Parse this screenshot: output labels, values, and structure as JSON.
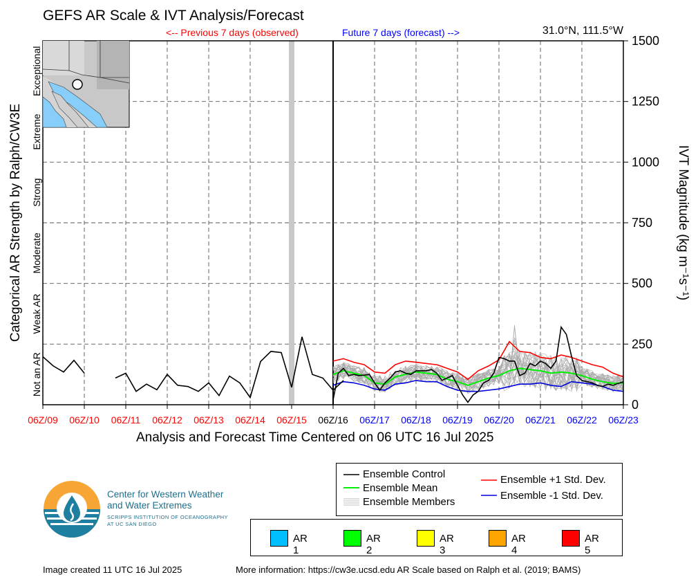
{
  "header": {
    "title": "GEFS AR Scale & IVT Analysis/Forecast",
    "coords": "31.0°N, 111.5°W",
    "previous_label": "<-- Previous 7 days (observed)",
    "future_label": "Future 7 days (forecast) -->"
  },
  "axes": {
    "x_title": "Analysis and Forecast Time Centered on 06 UTC 16 Jul 2025",
    "left_title": "Categorical AR Strength by Ralph/CW3E",
    "right_title": "IVT Magnitude (kg m⁻¹s⁻¹)",
    "y_ticks": [
      "0",
      "250",
      "500",
      "750",
      "1000",
      "1250",
      "1500"
    ],
    "categories": [
      "Not an AR",
      "Weak AR",
      "Moderate",
      "Strong",
      "Extreme",
      "Exceptional"
    ],
    "x_ticks": [
      "06Z/09",
      "06Z/10",
      "06Z/11",
      "06Z/12",
      "06Z/13",
      "06Z/14",
      "06Z/15",
      "06Z/16",
      "06Z/17",
      "06Z/18",
      "06Z/19",
      "06Z/20",
      "06Z/21",
      "06Z/22",
      "06Z/23"
    ],
    "x_tick_colors": [
      "#ff0000",
      "#ff0000",
      "#ff0000",
      "#ff0000",
      "#ff0000",
      "#ff0000",
      "#ff0000",
      "#000000",
      "#0000ff",
      "#0000ff",
      "#0000ff",
      "#0000ff",
      "#0000ff",
      "#0000ff",
      "#0000ff"
    ]
  },
  "legend": {
    "control": "Ensemble Control",
    "mean": "Ensemble Mean",
    "members": "Ensemble Members",
    "plus_std": "Ensemble +1 Std. Dev.",
    "minus_std": "Ensemble -1 Std. Dev."
  },
  "ar_scale": [
    {
      "label": "AR 1",
      "color": "#00bfff"
    },
    {
      "label": "AR 2",
      "color": "#00ff00"
    },
    {
      "label": "AR 3",
      "color": "#ffff00"
    },
    {
      "label": "AR 4",
      "color": "#ffa500"
    },
    {
      "label": "AR 5",
      "color": "#ff0000"
    }
  ],
  "logo": {
    "line1": "Center for Western Weather",
    "line2": "and Water Extremes",
    "sub1": "SCRIPPS INSTITUTION OF OCEANOGRAPHY",
    "sub2": "AT UC SAN DIEGO"
  },
  "footer": {
    "created": "Image created 11 UTC 16 Jul 2025",
    "more_info": "More information: https://cw3e.ucsd.edu AR Scale based on Ralph et al. (2019; BAMS)"
  },
  "chart_data": {
    "type": "line",
    "x_unit": "days relative to 06Z/09",
    "ylim": [
      0,
      1500
    ],
    "xlim": [
      0,
      14
    ],
    "grid": true,
    "analysis_time_x": 7,
    "highlight_x": 6,
    "series": [
      {
        "name": "Ensemble Control",
        "color": "#000000",
        "segments": [
          [
            [
              0,
              198
            ],
            [
              0.25,
              160
            ],
            [
              0.5,
              135
            ],
            [
              0.75,
              183
            ],
            [
              1,
              130
            ]
          ],
          [
            [
              1.75,
              110
            ],
            [
              2,
              130
            ],
            [
              2.25,
              55
            ],
            [
              2.5,
              85
            ],
            [
              2.75,
              62
            ],
            [
              3,
              125
            ],
            [
              3.25,
              80
            ],
            [
              3.5,
              75
            ],
            [
              3.75,
              55
            ],
            [
              4,
              90
            ],
            [
              4.25,
              38
            ],
            [
              4.5,
              118
            ],
            [
              4.75,
              90
            ],
            [
              5,
              30
            ],
            [
              5.25,
              178
            ],
            [
              5.5,
              220
            ],
            [
              5.75,
              215
            ],
            [
              6,
              72
            ],
            [
              6.25,
              280
            ],
            [
              6.5,
              125
            ],
            [
              6.75,
              110
            ],
            [
              7,
              60
            ],
            [
              7.25,
              100
            ]
          ]
        ]
      },
      {
        "name": "Ensemble Control (forecast)",
        "color": "#000000",
        "points": [
          [
            7,
            20
          ],
          [
            7.125,
            130
          ],
          [
            7.25,
            150
          ],
          [
            7.375,
            120
          ],
          [
            7.5,
            125
          ],
          [
            7.625,
            120
          ],
          [
            7.75,
            122
          ],
          [
            7.875,
            125
          ],
          [
            8,
            90
          ],
          [
            8.125,
            60
          ],
          [
            8.25,
            90
          ],
          [
            8.375,
            110
          ],
          [
            8.5,
            135
          ],
          [
            8.625,
            140
          ],
          [
            8.75,
            130
          ],
          [
            8.875,
            125
          ],
          [
            9,
            140
          ],
          [
            9.125,
            140
          ],
          [
            9.25,
            140
          ],
          [
            9.375,
            145
          ],
          [
            9.5,
            130
          ],
          [
            9.625,
            100
          ],
          [
            9.75,
            110
          ],
          [
            9.875,
            120
          ],
          [
            10,
            80
          ],
          [
            10.125,
            40
          ],
          [
            10.25,
            10
          ],
          [
            10.375,
            40
          ],
          [
            10.5,
            55
          ],
          [
            10.625,
            90
          ],
          [
            10.75,
            100
          ],
          [
            10.875,
            130
          ],
          [
            11,
            195
          ],
          [
            11.125,
            190
          ],
          [
            11.25,
            180
          ],
          [
            11.375,
            180
          ],
          [
            11.5,
            120
          ],
          [
            11.625,
            130
          ],
          [
            11.75,
            170
          ],
          [
            11.875,
            160
          ],
          [
            12,
            180
          ],
          [
            12.125,
            170
          ],
          [
            12.25,
            150
          ],
          [
            12.375,
            180
          ],
          [
            12.5,
            320
          ],
          [
            12.625,
            290
          ],
          [
            12.75,
            200
          ],
          [
            12.875,
            120
          ],
          [
            13,
            100
          ],
          [
            13.125,
            95
          ],
          [
            13.25,
            90
          ],
          [
            13.375,
            80
          ],
          [
            13.5,
            75
          ],
          [
            13.625,
            85
          ],
          [
            13.75,
            80
          ],
          [
            14,
            95
          ]
        ]
      },
      {
        "name": "Ensemble Mean",
        "color": "#00ee00",
        "points": [
          [
            7,
            125
          ],
          [
            7.25,
            140
          ],
          [
            7.5,
            130
          ],
          [
            7.75,
            120
          ],
          [
            8,
            90
          ],
          [
            8.25,
            85
          ],
          [
            8.5,
            115
          ],
          [
            8.75,
            125
          ],
          [
            9,
            135
          ],
          [
            9.25,
            130
          ],
          [
            9.5,
            125
          ],
          [
            9.75,
            105
          ],
          [
            10,
            95
          ],
          [
            10.25,
            80
          ],
          [
            10.5,
            95
          ],
          [
            10.75,
            110
          ],
          [
            11,
            120
          ],
          [
            11.25,
            140
          ],
          [
            11.5,
            150
          ],
          [
            11.75,
            145
          ],
          [
            12,
            140
          ],
          [
            12.25,
            130
          ],
          [
            12.5,
            135
          ],
          [
            12.75,
            130
          ],
          [
            13,
            120
          ],
          [
            13.25,
            105
          ],
          [
            13.5,
            95
          ],
          [
            13.75,
            88
          ],
          [
            14,
            90
          ]
        ]
      },
      {
        "name": "Ensemble +1 Std. Dev.",
        "color": "#ff0000",
        "points": [
          [
            7,
            180
          ],
          [
            7.25,
            190
          ],
          [
            7.5,
            175
          ],
          [
            7.75,
            165
          ],
          [
            8,
            135
          ],
          [
            8.25,
            130
          ],
          [
            8.5,
            165
          ],
          [
            8.75,
            180
          ],
          [
            9,
            175
          ],
          [
            9.25,
            170
          ],
          [
            9.5,
            165
          ],
          [
            9.75,
            150
          ],
          [
            10,
            135
          ],
          [
            10.25,
            105
          ],
          [
            10.5,
            140
          ],
          [
            10.75,
            160
          ],
          [
            11,
            185
          ],
          [
            11.25,
            260
          ],
          [
            11.5,
            220
          ],
          [
            11.75,
            215
          ],
          [
            12,
            195
          ],
          [
            12.25,
            190
          ],
          [
            12.5,
            205
          ],
          [
            12.75,
            195
          ],
          [
            13,
            180
          ],
          [
            13.25,
            165
          ],
          [
            13.5,
            155
          ],
          [
            13.75,
            130
          ],
          [
            14,
            115
          ]
        ]
      },
      {
        "name": "Ensemble -1 Std. Dev.",
        "color": "#0000dd",
        "points": [
          [
            7,
            80
          ],
          [
            7.25,
            95
          ],
          [
            7.5,
            90
          ],
          [
            7.75,
            80
          ],
          [
            8,
            65
          ],
          [
            8.25,
            60
          ],
          [
            8.5,
            85
          ],
          [
            8.75,
            90
          ],
          [
            9,
            100
          ],
          [
            9.25,
            95
          ],
          [
            9.5,
            95
          ],
          [
            9.75,
            75
          ],
          [
            10,
            60
          ],
          [
            10.25,
            55
          ],
          [
            10.5,
            55
          ],
          [
            10.75,
            60
          ],
          [
            11,
            65
          ],
          [
            11.25,
            75
          ],
          [
            11.5,
            85
          ],
          [
            11.75,
            85
          ],
          [
            12,
            90
          ],
          [
            12.25,
            80
          ],
          [
            12.5,
            75
          ],
          [
            12.75,
            95
          ],
          [
            13,
            90
          ],
          [
            13.25,
            85
          ],
          [
            13.5,
            75
          ],
          [
            13.75,
            60
          ],
          [
            14,
            55
          ]
        ]
      }
    ],
    "members_count": 30,
    "members_color": "#aaaaaa"
  }
}
